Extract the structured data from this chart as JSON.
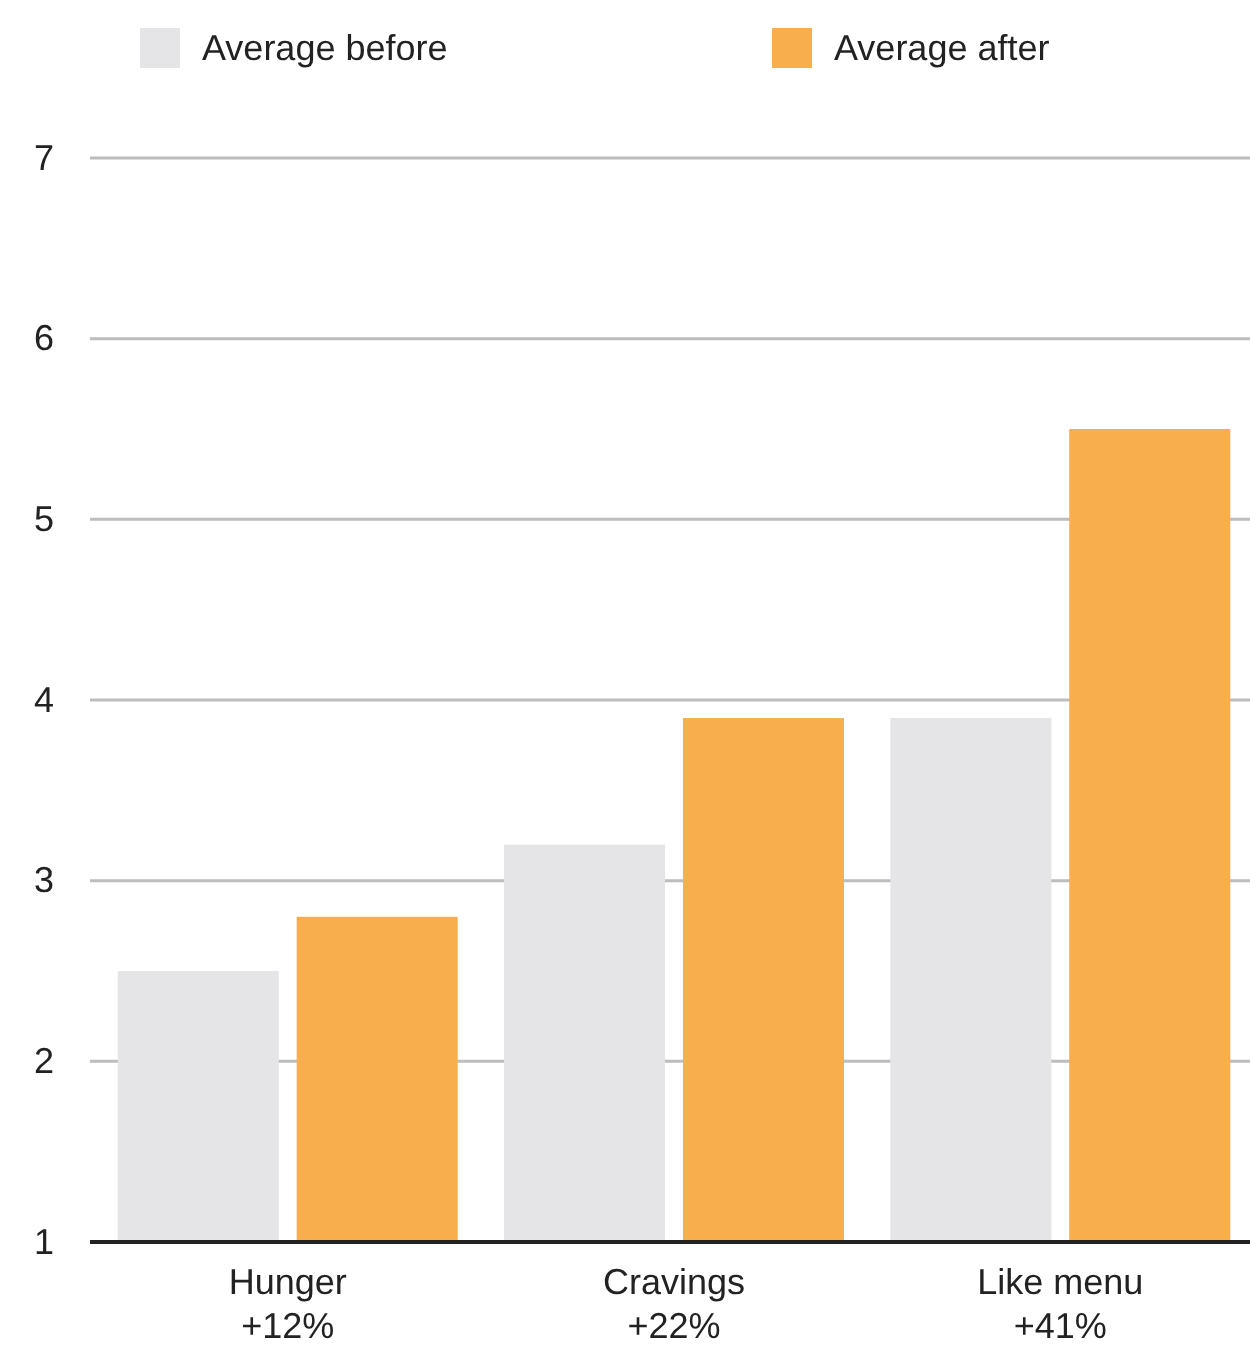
{
  "chart_data": {
    "type": "bar",
    "categories": [
      "Hunger\n+12%",
      "Cravings\n+22%",
      "Like menu\n+41%"
    ],
    "series": [
      {
        "name": "Average before",
        "color": "#e5e5e7",
        "values": [
          2.5,
          3.2,
          3.9
        ]
      },
      {
        "name": "Average after",
        "color": "#f8ae4c",
        "values": [
          2.8,
          3.9,
          5.5
        ]
      }
    ],
    "ylim": [
      1,
      7
    ],
    "yticks": [
      1,
      2,
      3,
      4,
      5,
      6,
      7
    ],
    "grid": "y",
    "legend": "top"
  }
}
